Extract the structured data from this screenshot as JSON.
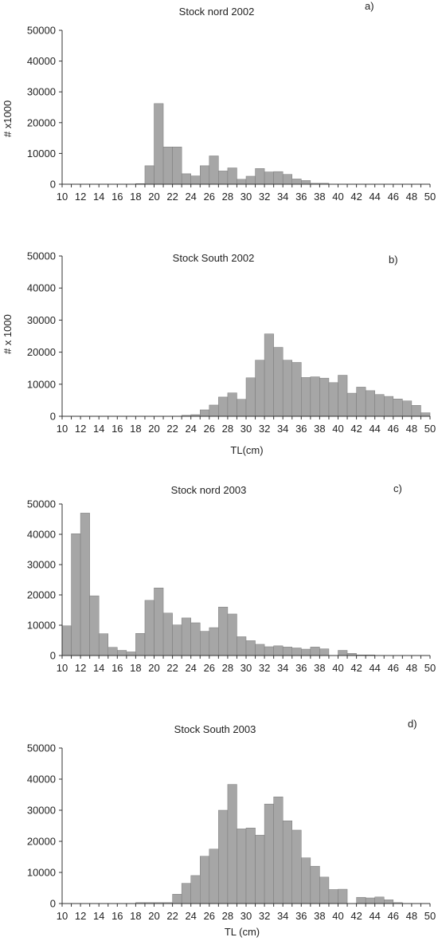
{
  "chart_data": [
    {
      "type": "bar",
      "title": "Stock nord 2002",
      "panel_label": "a)",
      "xlabel": "",
      "ylabel": "# x1000",
      "ylim": [
        0,
        50000
      ],
      "yticks": [
        0,
        10000,
        20000,
        30000,
        40000,
        50000
      ],
      "xlim": [
        10,
        50
      ],
      "xtick_labels": [
        10,
        12,
        14,
        16,
        18,
        20,
        22,
        24,
        26,
        28,
        30,
        32,
        34,
        36,
        38,
        40,
        42,
        44,
        46,
        48,
        50
      ],
      "bar_color": "#a6a6a6",
      "x": [
        10,
        11,
        12,
        13,
        14,
        15,
        16,
        17,
        18,
        19,
        20,
        21,
        22,
        23,
        24,
        25,
        26,
        27,
        28,
        29,
        30,
        31,
        32,
        33,
        34,
        35,
        36,
        37,
        38,
        39,
        40,
        41,
        42,
        43,
        44,
        45,
        46,
        47,
        48,
        49
      ],
      "values": [
        0,
        0,
        0,
        0,
        0,
        0,
        0,
        0,
        200,
        6000,
        26200,
        12100,
        12100,
        3400,
        2700,
        6000,
        9200,
        4300,
        5300,
        1600,
        2600,
        5100,
        4000,
        4100,
        3200,
        1700,
        1200,
        300,
        300,
        0,
        0,
        0,
        0,
        0,
        0,
        0,
        0,
        0,
        0,
        0
      ]
    },
    {
      "type": "bar",
      "title": "Stock South 2002",
      "panel_label": "b)",
      "xlabel": "TL(cm)",
      "ylabel": "# x 1000",
      "ylim": [
        0,
        50000
      ],
      "yticks": [
        0,
        10000,
        20000,
        30000,
        40000,
        50000
      ],
      "xlim": [
        10,
        50
      ],
      "xtick_labels": [
        10,
        12,
        14,
        16,
        18,
        20,
        22,
        24,
        26,
        28,
        30,
        32,
        34,
        36,
        38,
        40,
        42,
        44,
        46,
        48,
        50
      ],
      "bar_color": "#a6a6a6",
      "x": [
        10,
        11,
        12,
        13,
        14,
        15,
        16,
        17,
        18,
        19,
        20,
        21,
        22,
        23,
        24,
        25,
        26,
        27,
        28,
        29,
        30,
        31,
        32,
        33,
        34,
        35,
        36,
        37,
        38,
        39,
        40,
        41,
        42,
        43,
        44,
        45,
        46,
        47,
        48,
        49
      ],
      "values": [
        0,
        0,
        0,
        0,
        0,
        0,
        0,
        0,
        0,
        0,
        0,
        0,
        0,
        300,
        500,
        2000,
        3500,
        6000,
        7300,
        5300,
        12000,
        17500,
        25700,
        21500,
        17500,
        16800,
        12100,
        12300,
        11900,
        10500,
        12800,
        7200,
        9100,
        8000,
        6800,
        6200,
        5400,
        4800,
        3400,
        1100
      ]
    },
    {
      "type": "bar",
      "title": "Stock nord 2003",
      "panel_label": "c)",
      "xlabel": "",
      "ylabel": "",
      "ylim": [
        0,
        50000
      ],
      "yticks": [
        0,
        10000,
        20000,
        30000,
        40000,
        50000
      ],
      "xlim": [
        10,
        50
      ],
      "xtick_labels": [
        10,
        12,
        14,
        16,
        18,
        20,
        22,
        24,
        26,
        28,
        30,
        32,
        34,
        36,
        38,
        40,
        42,
        44,
        46,
        48,
        50
      ],
      "bar_color": "#a6a6a6",
      "x": [
        10,
        11,
        12,
        13,
        14,
        15,
        16,
        17,
        18,
        19,
        20,
        21,
        22,
        23,
        24,
        25,
        26,
        27,
        28,
        29,
        30,
        31,
        32,
        33,
        34,
        35,
        36,
        37,
        38,
        39,
        40,
        41,
        42,
        43,
        44,
        45,
        46,
        47,
        48,
        49
      ],
      "values": [
        9800,
        40200,
        47000,
        19700,
        7200,
        2700,
        1700,
        1200,
        7300,
        18200,
        22300,
        14000,
        10100,
        12400,
        10800,
        8000,
        9200,
        16000,
        13700,
        6200,
        4900,
        3700,
        2900,
        3200,
        2800,
        2500,
        2100,
        2800,
        2200,
        0,
        1700,
        700,
        200,
        200,
        0,
        0,
        0,
        0,
        0,
        0
      ]
    },
    {
      "type": "bar",
      "title": "Stock South 2003",
      "panel_label": "d)",
      "xlabel": "TL (cm)",
      "ylabel": "",
      "ylim": [
        0,
        50000
      ],
      "yticks": [
        0,
        10000,
        20000,
        30000,
        40000,
        50000
      ],
      "xlim": [
        10,
        50
      ],
      "xtick_labels": [
        10,
        12,
        14,
        16,
        18,
        20,
        22,
        24,
        26,
        28,
        30,
        32,
        34,
        36,
        38,
        40,
        42,
        44,
        46,
        48,
        50
      ],
      "bar_color": "#a6a6a6",
      "x": [
        10,
        11,
        12,
        13,
        14,
        15,
        16,
        17,
        18,
        19,
        20,
        21,
        22,
        23,
        24,
        25,
        26,
        27,
        28,
        29,
        30,
        31,
        32,
        33,
        34,
        35,
        36,
        37,
        38,
        39,
        40,
        41,
        42,
        43,
        44,
        45,
        46,
        47,
        48,
        49
      ],
      "values": [
        0,
        0,
        0,
        0,
        0,
        0,
        0,
        0,
        300,
        300,
        300,
        300,
        3000,
        6500,
        9000,
        15200,
        17500,
        30000,
        38300,
        24000,
        24300,
        22000,
        32000,
        34300,
        26600,
        23600,
        14700,
        12000,
        8500,
        4500,
        4600,
        0,
        2000,
        1800,
        2100,
        1200,
        300,
        0,
        0,
        0
      ]
    }
  ]
}
